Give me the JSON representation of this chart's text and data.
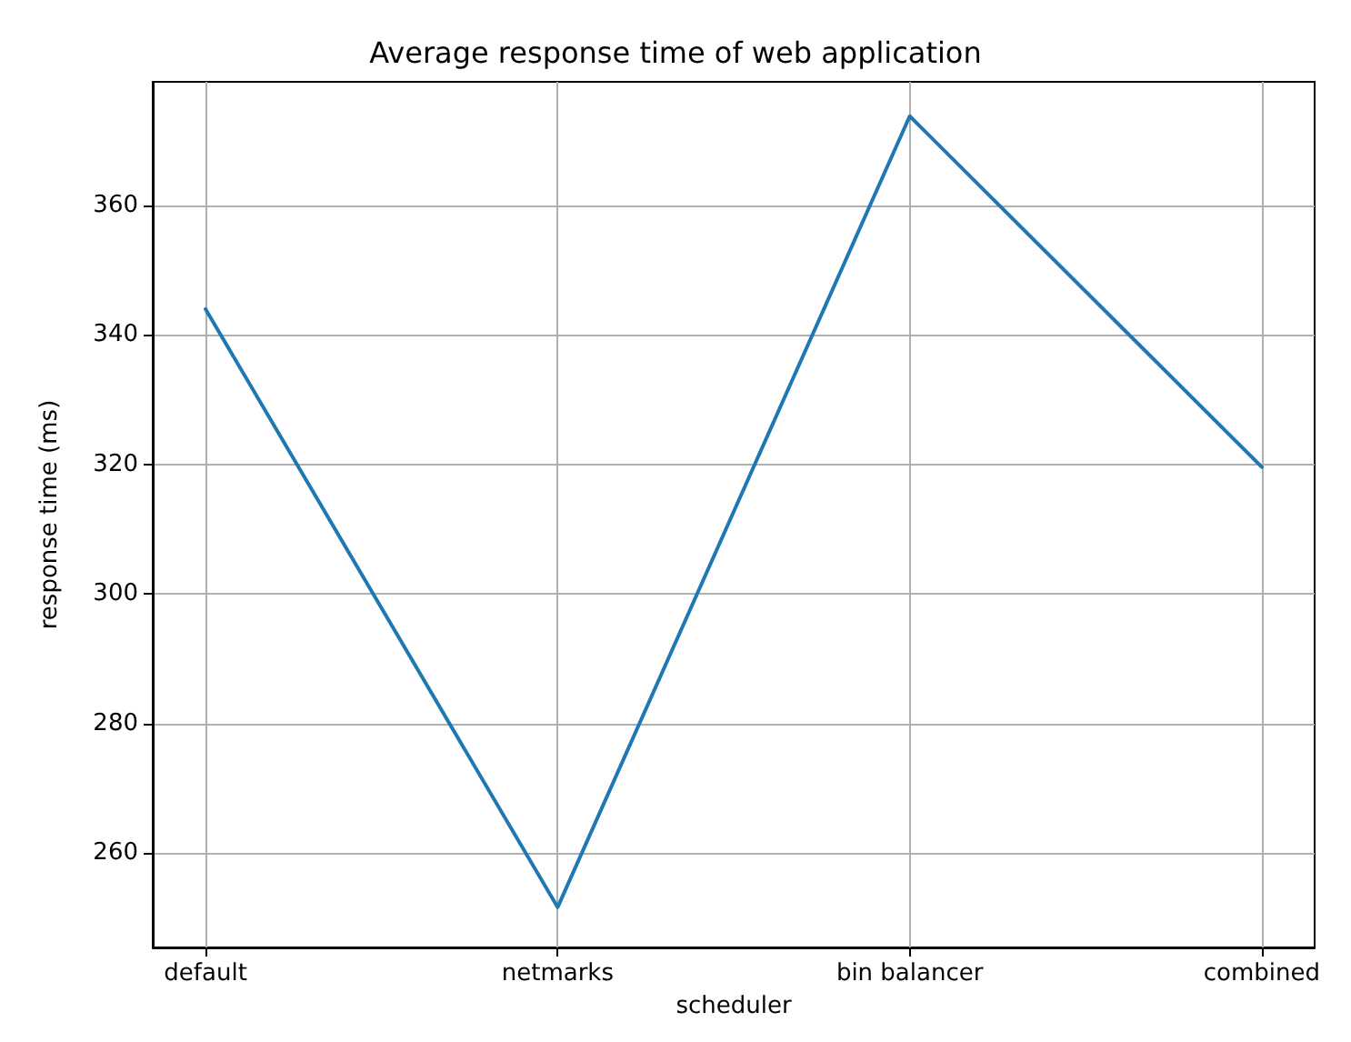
{
  "chart_data": {
    "type": "line",
    "title": "Average response time of web application",
    "xlabel": "scheduler",
    "ylabel": "response time (ms)",
    "categories": [
      "default",
      "netmarks",
      "bin balancer",
      "combined"
    ],
    "series": [
      {
        "color": "#1f77b4",
        "values": [
          344,
          251.6,
          373.8,
          319.6
        ]
      }
    ],
    "ylim": [
      245.4,
      379.1
    ],
    "yticks": [
      260,
      280,
      300,
      320,
      340,
      360
    ],
    "grid": true,
    "marker": "none",
    "line_style": "solid"
  }
}
